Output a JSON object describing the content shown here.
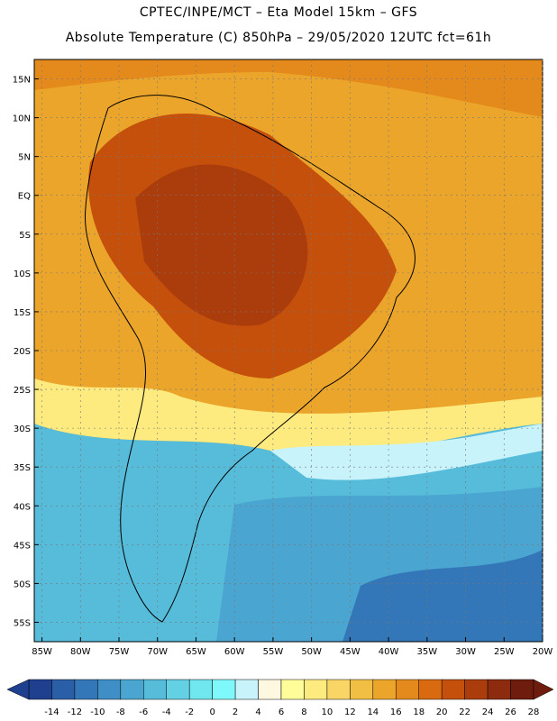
{
  "header": {
    "line1": "CPTEC/INPE/MCT –   Eta Model 15km – GFS",
    "line2": "Absolute Temperature (C) 850hPa – 29/05/2020 12UTC fct=61h"
  },
  "map": {
    "lat_ticks": [
      "15N",
      "10N",
      "5N",
      "EQ",
      "5S",
      "10S",
      "15S",
      "20S",
      "25S",
      "30S",
      "35S",
      "40S",
      "45S",
      "50S",
      "55S"
    ],
    "lon_ticks": [
      "85W",
      "80W",
      "75W",
      "70W",
      "65W",
      "60W",
      "55W",
      "50W",
      "45W",
      "40W",
      "35W",
      "30W",
      "25W",
      "20W"
    ],
    "lat_range": [
      17.5,
      -57.5
    ],
    "lon_range": [
      -86,
      -20
    ]
  },
  "colorbar": {
    "labels": [
      "-14",
      "-12",
      "-10",
      "-8",
      "-6",
      "-4",
      "-2",
      "0",
      "2",
      "4",
      "6",
      "8",
      "10",
      "12",
      "14",
      "16",
      "18",
      "20",
      "22",
      "24",
      "26",
      "28"
    ],
    "colors": [
      "#1f3f8f",
      "#2a5ea6",
      "#3377b8",
      "#3f8fc6",
      "#4aa5d0",
      "#56bcd9",
      "#63d0e3",
      "#70e6ee",
      "#7ff8fb",
      "#c9f3fb",
      "#fff8e0",
      "#fffc9a",
      "#fdeb80",
      "#f8d565",
      "#f2bf45",
      "#eca52b",
      "#e4891b",
      "#d96a0f",
      "#c5500c",
      "#ab3c0c",
      "#8c2b0d",
      "#6e1c0d"
    ]
  }
}
